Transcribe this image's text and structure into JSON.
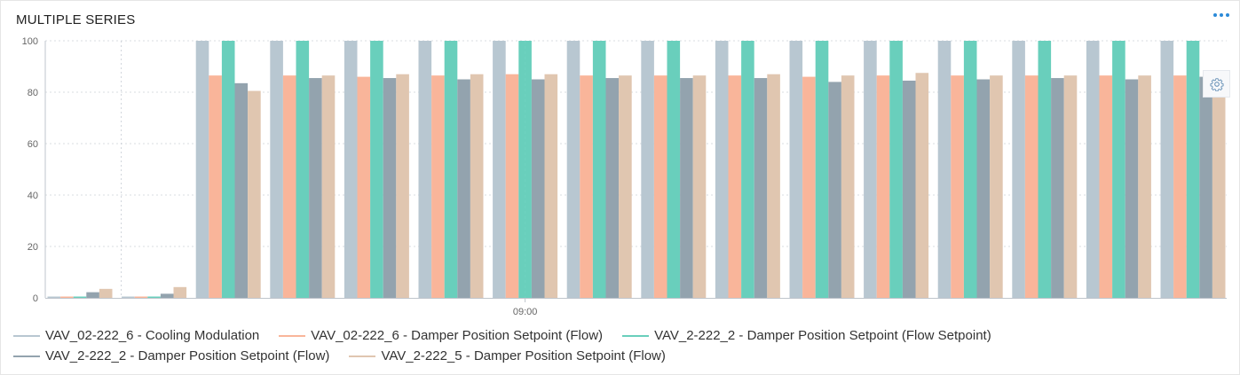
{
  "widget": {
    "title": "MULTIPLE SERIES"
  },
  "icons": {
    "more": "more-horizontal-icon",
    "settings": "gear-icon"
  },
  "colors": {
    "axis": "#bfc5cc",
    "gridline": "#d9dde2",
    "tick_text": "#666666",
    "cursor_line": "#6fd3c0",
    "more_dots": "#2b8ad8"
  },
  "chart_data": {
    "type": "bar",
    "ylim": [
      0,
      100
    ],
    "yticks": [
      0,
      20,
      40,
      60,
      80,
      100
    ],
    "x_tick_labels": [
      {
        "label": "09:00",
        "category_index": 6
      }
    ],
    "grid": "horizontal dashed",
    "legend_position": "bottom",
    "categories_count": 16,
    "series": [
      {
        "name": "VAV_02-222_6 - Cooling Modulation",
        "color": "#b8c7d1",
        "values": [
          0,
          0,
          100,
          100,
          100,
          100,
          100,
          100,
          100,
          100,
          100,
          100,
          100,
          100,
          100,
          100
        ]
      },
      {
        "name": "VAV_02-222_6 - Damper Position Setpoint (Flow)",
        "color": "#f9b59a",
        "values": [
          0,
          0,
          86.5,
          86.5,
          86,
          86.5,
          87,
          86.5,
          86.5,
          86.5,
          86,
          86.5,
          86.5,
          86.5,
          86.5,
          86.5
        ]
      },
      {
        "name": "VAV_2-222_2 - Damper Position Setpoint (Flow Setpoint)",
        "color": "#69cfbc",
        "values": [
          0,
          0,
          100,
          100,
          100,
          100,
          100,
          100,
          100,
          100,
          100,
          100,
          100,
          100,
          100,
          100
        ]
      },
      {
        "name": "VAV_2-222_2 - Damper Position Setpoint (Flow)",
        "color": "#93a3ae",
        "values": [
          2.2,
          1.6,
          83.5,
          85.5,
          85.5,
          85,
          85,
          85.5,
          85.5,
          85.5,
          84,
          84.5,
          85,
          85.5,
          85,
          86
        ]
      },
      {
        "name": "VAV_2-222_5 - Damper Position Setpoint (Flow)",
        "color": "#e0c6b0",
        "values": [
          3.5,
          4.2,
          80.5,
          86.5,
          87,
          87,
          87,
          86.5,
          86.5,
          87,
          86.5,
          87.5,
          86.5,
          86.5,
          86.5,
          86.5
        ]
      }
    ]
  }
}
